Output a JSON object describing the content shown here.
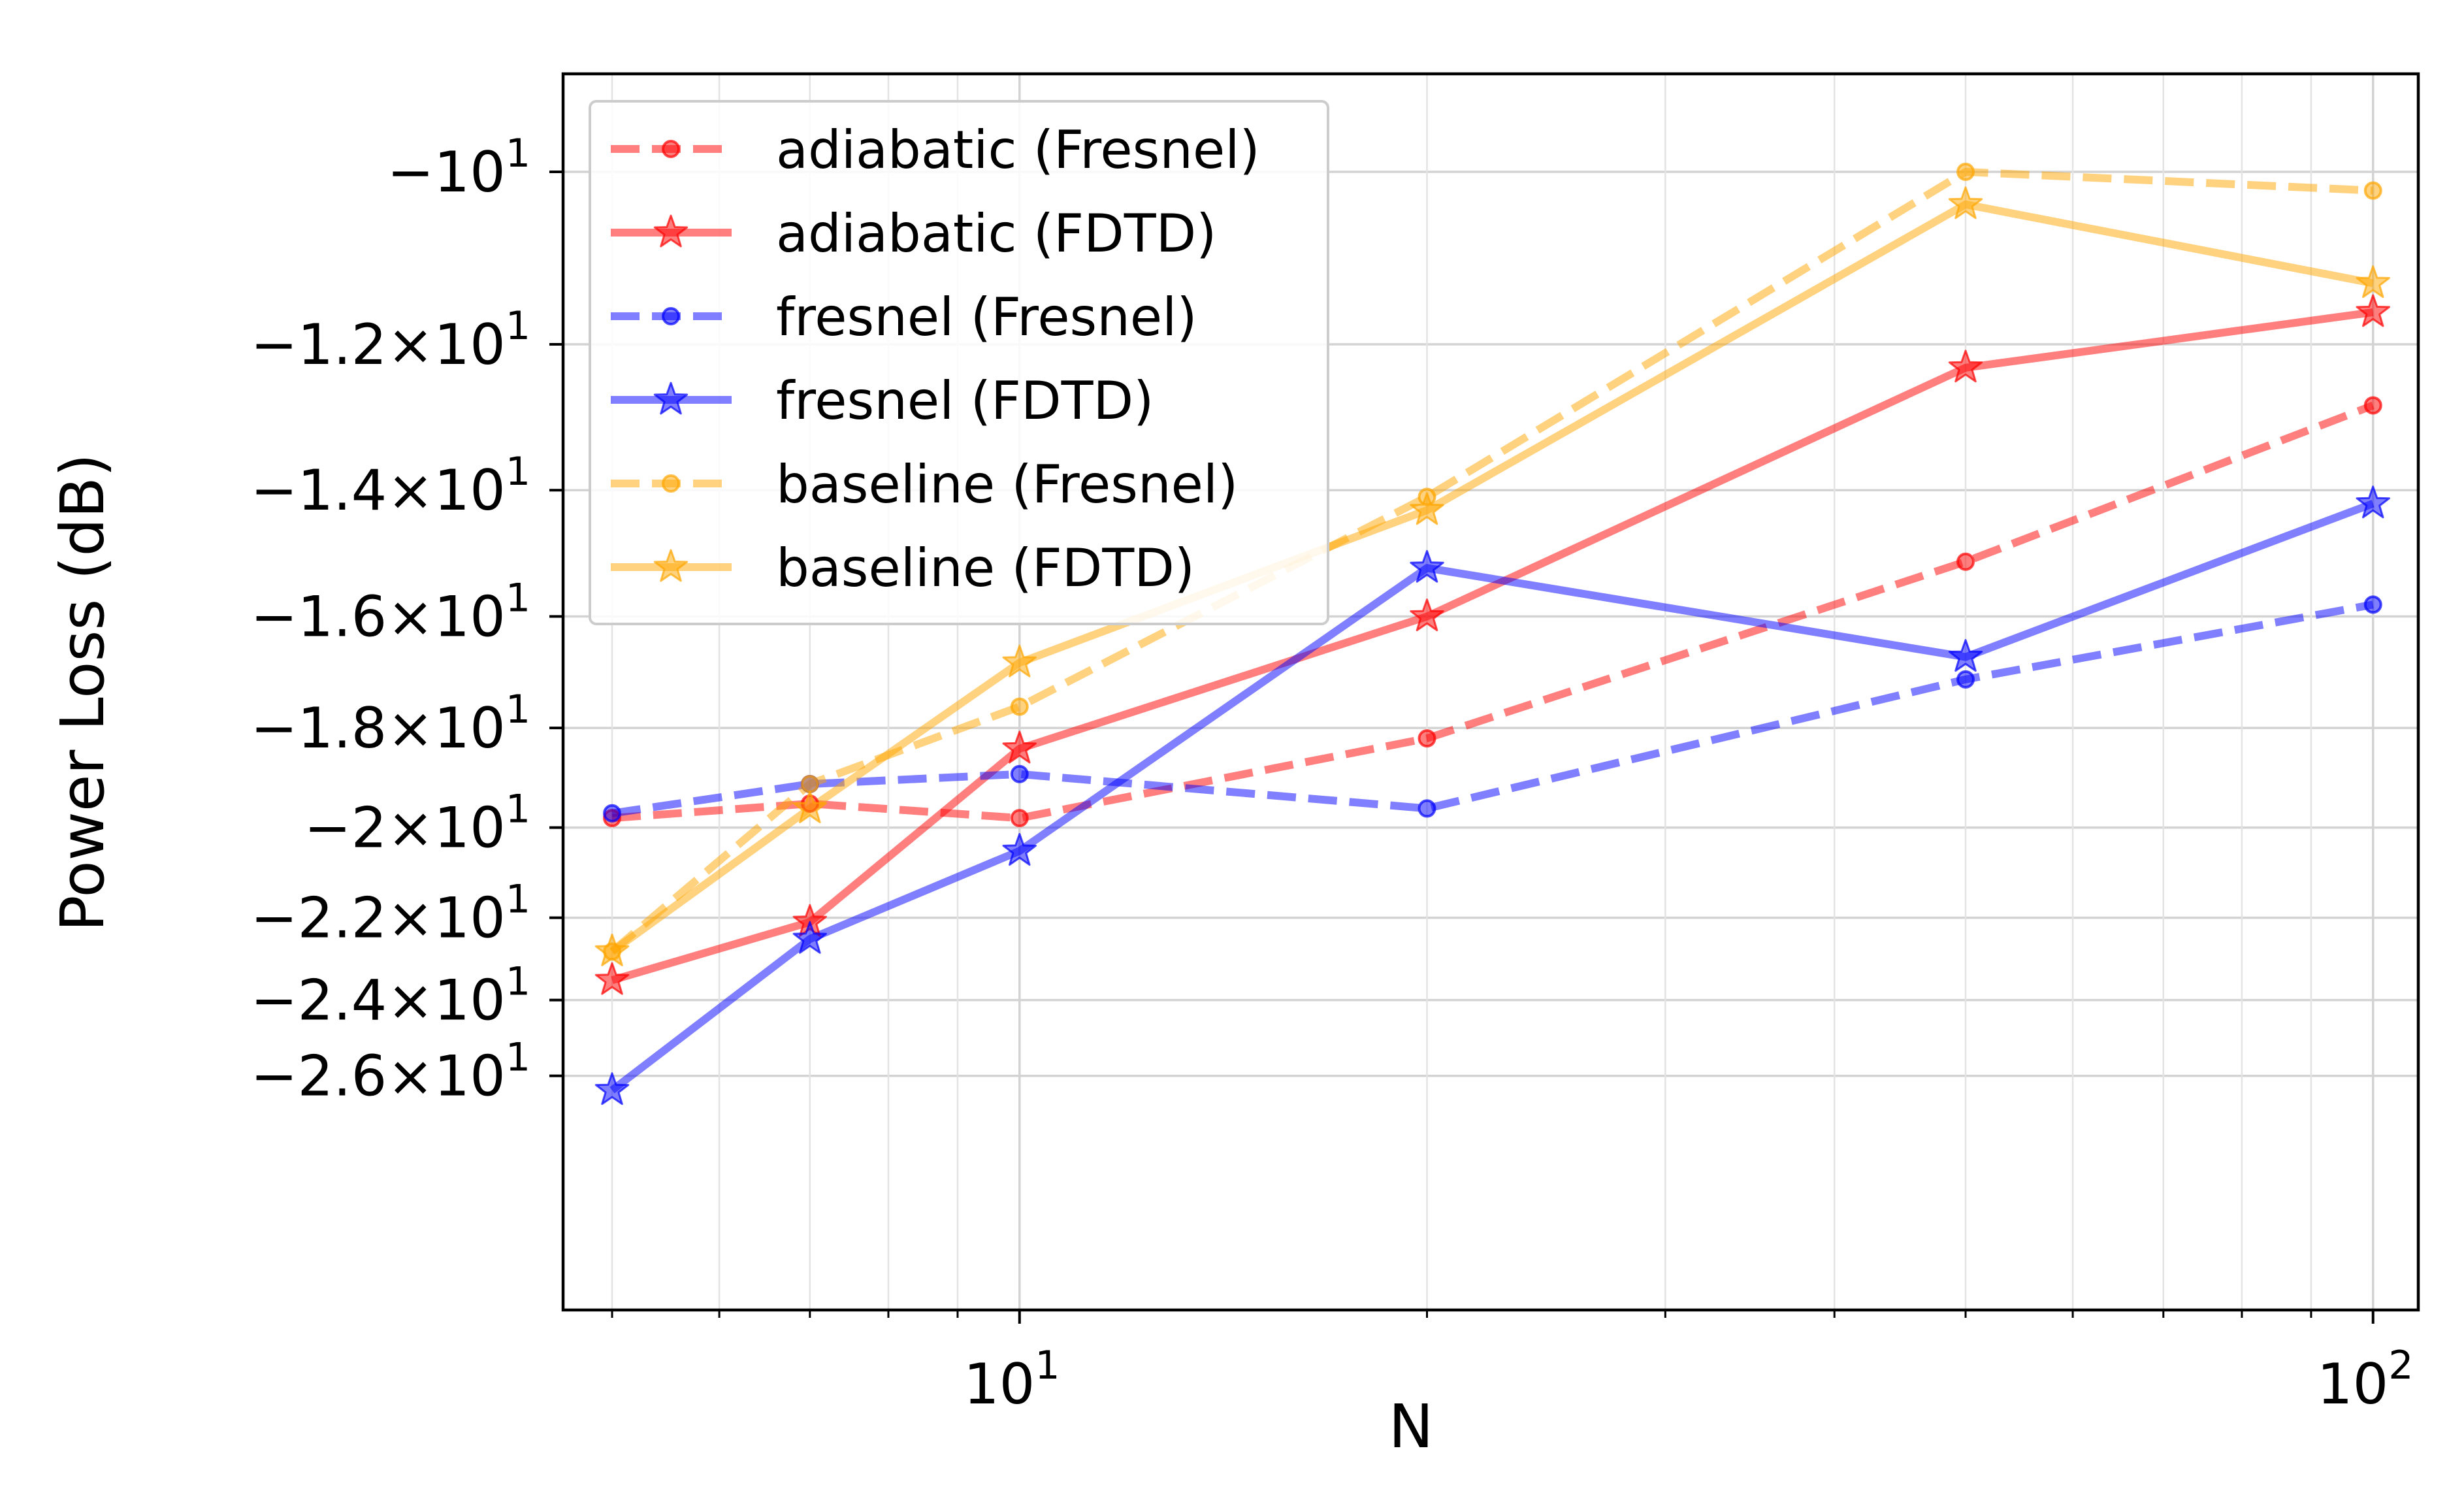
{
  "chart_data": {
    "type": "line",
    "xscale": "log",
    "yscale": "symlog",
    "xlabel": "N",
    "ylabel": "Power Loss (dB)",
    "xlim": [
      4.6,
      108
    ],
    "x_ticks": [
      {
        "value": 10,
        "base": "10",
        "exp": "1"
      },
      {
        "value": 100,
        "base": "10",
        "exp": "2"
      }
    ],
    "y_ticks": [
      {
        "value": -10,
        "prefix": "−10",
        "exp": "1"
      },
      {
        "value": -12,
        "prefix": "−1.2×10",
        "exp": "1"
      },
      {
        "value": -14,
        "prefix": "−1.4×10",
        "exp": "1"
      },
      {
        "value": -16,
        "prefix": "−1.6×10",
        "exp": "1"
      },
      {
        "value": -18,
        "prefix": "−1.8×10",
        "exp": "1"
      },
      {
        "value": -20,
        "prefix": "−2×10",
        "exp": "1"
      },
      {
        "value": -22,
        "prefix": "−2.2×10",
        "exp": "1"
      },
      {
        "value": -24,
        "prefix": "−2.4×10",
        "exp": "1"
      },
      {
        "value": -26,
        "prefix": "−2.6×10",
        "exp": "1"
      }
    ],
    "x": [
      5,
      7,
      10,
      20,
      50,
      100
    ],
    "grid": true,
    "legend_position": "top-left",
    "series": [
      {
        "name": "adiabatic (Fresnel)",
        "color": "#ff0000",
        "linestyle": "dashed",
        "marker": "circle",
        "values": [
          -19.8,
          -19.5,
          -19.8,
          -18.2,
          -15.1,
          -12.8
        ]
      },
      {
        "name": "adiabatic (FDTD)",
        "color": "#ff0000",
        "linestyle": "solid",
        "marker": "star",
        "values": [
          -23.5,
          -22.1,
          -18.4,
          -16.0,
          -12.3,
          -11.6
        ]
      },
      {
        "name": "fresnel (Fresnel)",
        "color": "#0000ff",
        "linestyle": "dashed",
        "marker": "circle",
        "values": [
          -19.7,
          -19.1,
          -18.9,
          -19.6,
          -17.1,
          -15.8
        ]
      },
      {
        "name": "fresnel (FDTD)",
        "color": "#0000ff",
        "linestyle": "solid",
        "marker": "star",
        "values": [
          -26.4,
          -22.5,
          -20.5,
          -15.2,
          -16.7,
          -14.2
        ]
      },
      {
        "name": "baseline (Fresnel)",
        "color": "#ffa500",
        "linestyle": "dashed",
        "marker": "circle",
        "values": [
          -22.8,
          -19.1,
          -17.6,
          -14.1,
          -10.0,
          -10.2
        ]
      },
      {
        "name": "baseline (FDTD)",
        "color": "#ffa500",
        "linestyle": "solid",
        "marker": "star",
        "values": [
          -22.8,
          -19.6,
          -16.8,
          -14.3,
          -10.35,
          -11.25
        ]
      }
    ]
  }
}
